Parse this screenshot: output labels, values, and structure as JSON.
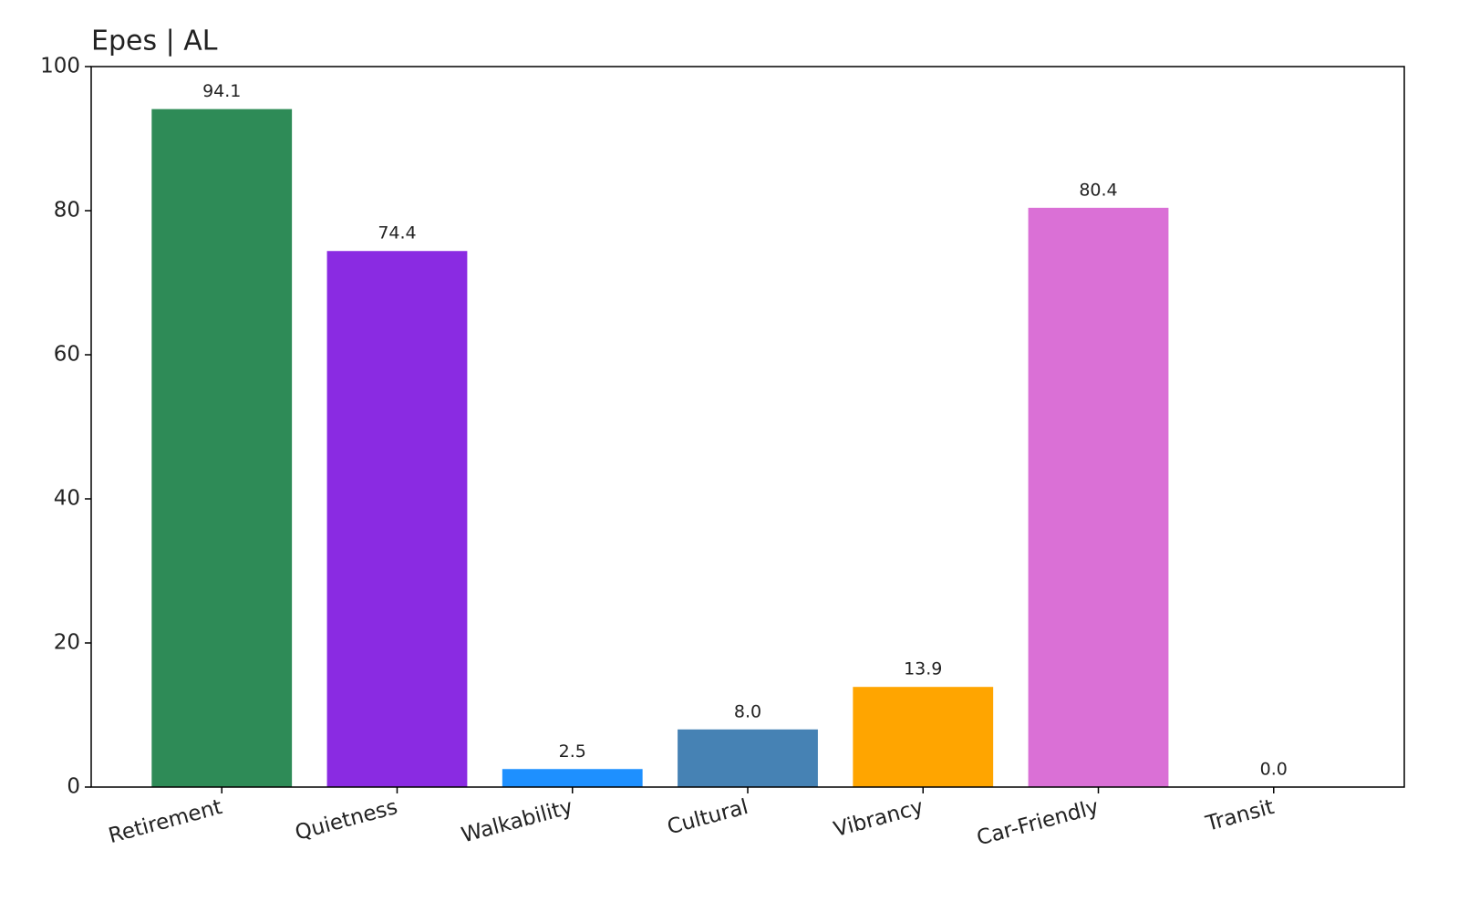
{
  "chart_data": {
    "type": "bar",
    "title": "Epes | AL",
    "categories": [
      "Retirement",
      "Quietness",
      "Walkability",
      "Cultural",
      "Vibrancy",
      "Car-Friendly",
      "Transit"
    ],
    "values": [
      94.1,
      74.4,
      2.5,
      8.0,
      13.9,
      80.4,
      0.0
    ],
    "value_labels": [
      "94.1",
      "74.4",
      "2.5",
      "8.0",
      "13.9",
      "80.4",
      "0.0"
    ],
    "colors": [
      "#2e8b57",
      "#8a2be2",
      "#1e90ff",
      "#4682b4",
      "#ffa500",
      "#da70d6",
      "#808080"
    ],
    "ylim": [
      0,
      100
    ],
    "yticks": [
      0,
      20,
      40,
      60,
      80,
      100
    ],
    "grid": false
  }
}
